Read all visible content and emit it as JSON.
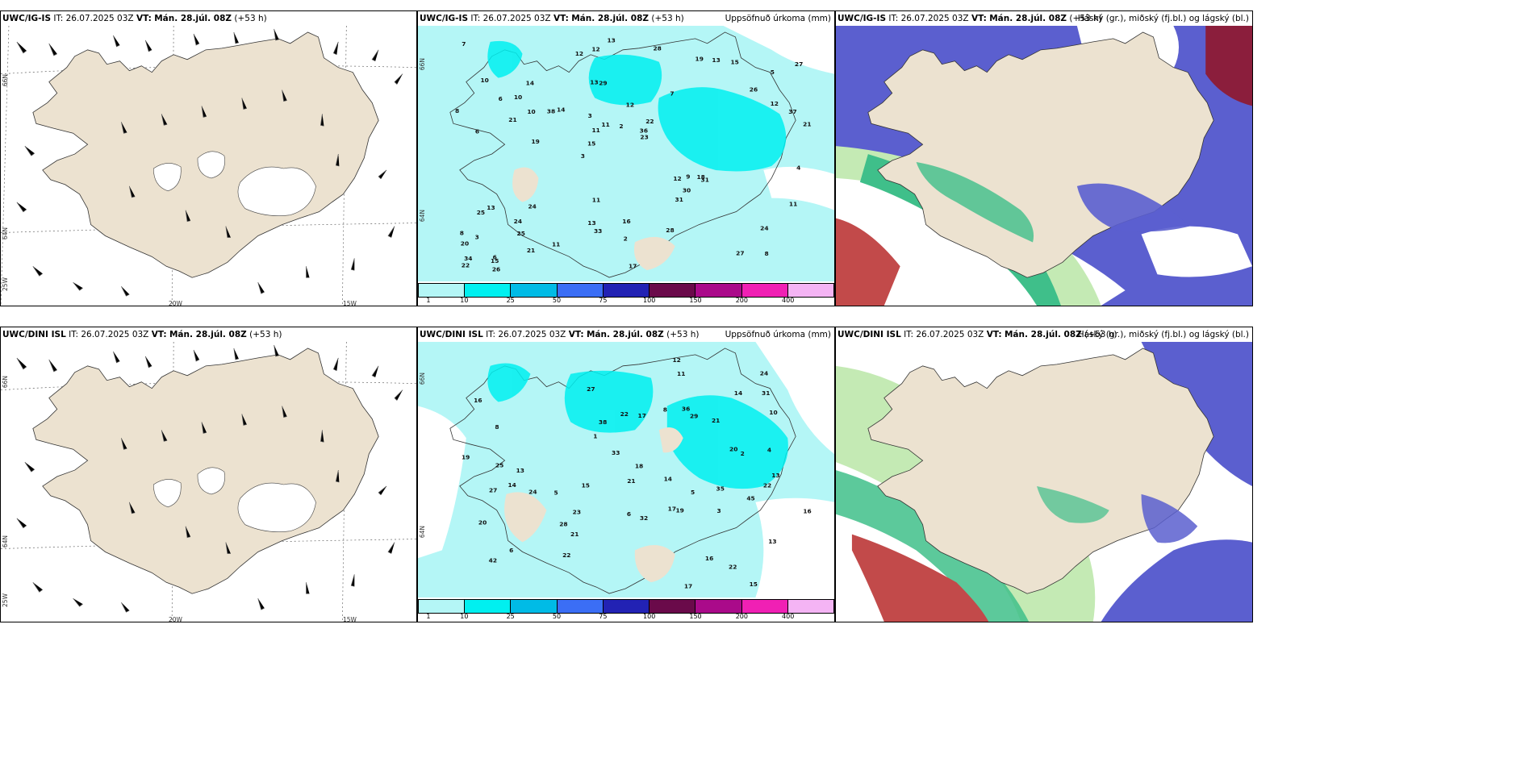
{
  "panels": [
    {
      "id": "r1c1",
      "header": {
        "model": "UWC/IG-IS",
        "it": "IT: 26.07.2025 03Z",
        "vt_label": "VT:",
        "vt": "Mán. 28.júl. 08Z",
        "lead": "(+53 h)"
      },
      "right_title": "",
      "axis": {
        "left_top": "66N",
        "left_bottom": "64N",
        "bottom_left": "25W",
        "bottom_mid": "20W",
        "bottom_right": "15W"
      },
      "type": "wind"
    },
    {
      "id": "r1c2",
      "header": {
        "model": "UWC/IG-IS",
        "it": "IT: 26.07.2025 03Z",
        "vt_label": "VT:",
        "vt": "Mán. 28.júl. 08Z",
        "lead": "(+53 h)"
      },
      "right_title": "Uppsöfnuð úrkoma (mm)",
      "axis": {
        "left_top": "66N",
        "left_bottom": "64N",
        "bottom_left": "",
        "bottom_mid": "",
        "bottom_right": ""
      },
      "type": "precip"
    },
    {
      "id": "r1c3",
      "header": {
        "model": "UWC/IG-IS",
        "it": "IT: 26.07.2025 03Z",
        "vt_label": "VT:",
        "vt": "Mán. 28.júl. 08Z",
        "lead": "(+53 h)"
      },
      "right_title": "Háský (gr.), miðský (fj.bl.) og lágský (bl.)",
      "axis": {
        "left_top": "",
        "left_bottom": "",
        "bottom_left": "",
        "bottom_mid": "",
        "bottom_right": ""
      },
      "type": "clouds"
    },
    {
      "id": "r2c1",
      "header": {
        "model": "UWC/DINI ISL",
        "it": "IT: 26.07.2025 03Z",
        "vt_label": "VT:",
        "vt": "Mán. 28.júl. 08Z",
        "lead": "(+53 h)"
      },
      "right_title": "",
      "axis": {
        "left_top": "66N",
        "left_bottom": "64N",
        "bottom_left": "25W",
        "bottom_mid": "20W",
        "bottom_right": "15W"
      },
      "type": "wind"
    },
    {
      "id": "r2c2",
      "header": {
        "model": "UWC/DINI ISL",
        "it": "IT: 26.07.2025 03Z",
        "vt_label": "VT:",
        "vt": "Mán. 28.júl. 08Z",
        "lead": "(+53 h)"
      },
      "right_title": "Uppsöfnuð úrkoma (mm)",
      "axis": {
        "left_top": "66N",
        "left_bottom": "64N",
        "bottom_left": "",
        "bottom_mid": "",
        "bottom_right": ""
      },
      "type": "precip"
    },
    {
      "id": "r2c3",
      "header": {
        "model": "UWC/DINI ISL",
        "it": "IT: 26.07.2025 03Z",
        "vt_label": "VT:",
        "vt": "Mán. 28.júl. 08Z",
        "lead": "(+53 h)"
      },
      "right_title": "Háský (gr.), miðský (fj.bl.) og lágský (bl.)",
      "axis": {
        "left_top": "",
        "left_bottom": "",
        "bottom_left": "",
        "bottom_mid": "",
        "bottom_right": ""
      },
      "type": "clouds"
    }
  ],
  "colorbar": {
    "colors": [
      "#b4f6f6",
      "#00f0f0",
      "#00bbe6",
      "#3b6ef5",
      "#2222b4",
      "#6a0a4a",
      "#aa0a8a",
      "#f020b4",
      "#f4b4f4"
    ],
    "labels": [
      "1",
      "10",
      "25",
      "50",
      "75",
      "100",
      "150",
      "200",
      "400"
    ]
  },
  "precip_values_top": [
    "8",
    "6",
    "5",
    "3",
    "7",
    "6",
    "13",
    "12",
    "13",
    "14",
    "20",
    "25",
    "29",
    "22",
    "31",
    "10",
    "12",
    "21",
    "12",
    "12",
    "15",
    "13",
    "11",
    "14",
    "19",
    "24",
    "27",
    "24",
    "18",
    "17",
    "38",
    "21",
    "31",
    "21",
    "37",
    "36",
    "34",
    "33",
    "23",
    "25",
    "26",
    "27",
    "30",
    "28",
    "24",
    "26",
    "22",
    "16",
    "15",
    "13",
    "19",
    "8",
    "10",
    "13",
    "15",
    "28",
    "12",
    "11",
    "11",
    "11",
    "11",
    "9",
    "10",
    "8",
    "7",
    "6",
    "4",
    "3",
    "2",
    "2",
    "3"
  ],
  "precip_values_bottom": [
    "15",
    "14",
    "17",
    "16",
    "13",
    "8",
    "6",
    "5",
    "21",
    "22",
    "29",
    "22",
    "21",
    "27",
    "14",
    "20",
    "35",
    "18",
    "19",
    "42",
    "24",
    "17",
    "20",
    "16",
    "13",
    "25",
    "24",
    "21",
    "33",
    "31",
    "19",
    "27",
    "28",
    "36",
    "38",
    "45",
    "22",
    "16",
    "14",
    "17",
    "23",
    "32",
    "22",
    "12",
    "15",
    "13",
    "10",
    "11",
    "8",
    "6",
    "5",
    "4",
    "3",
    "2",
    "1"
  ],
  "map_colors": {
    "land": "#ece2d0",
    "white": "#ffffff",
    "low": "#5b5fcf",
    "mid_light": "#c4eab4",
    "mid": "#3fbf8a",
    "high": "#c24a4a",
    "high_dark": "#8b1e3c"
  }
}
